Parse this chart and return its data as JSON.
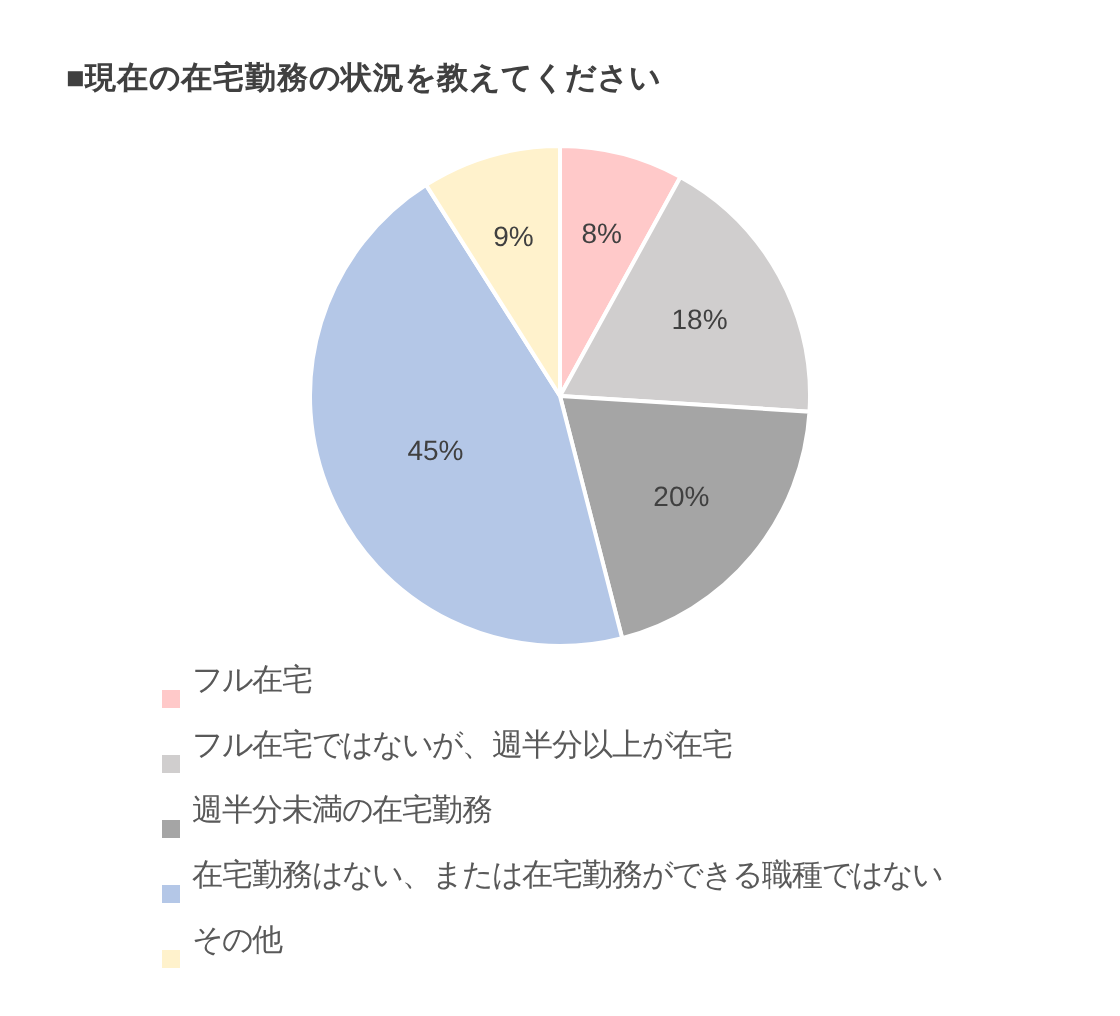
{
  "chart_data": {
    "type": "pie",
    "title": "■現在の在宅勤務の状況を教えてください",
    "categories": [
      "フル在宅",
      "フル在宅ではないが、週半分以上が在宅",
      "週半分未満の在宅勤務",
      "在宅勤務はない、または在宅勤務ができる職種ではない",
      "その他"
    ],
    "values": [
      8,
      18,
      20,
      45,
      9
    ],
    "colors": [
      "#ffc9c9",
      "#d0cece",
      "#a5a5a5",
      "#b4c7e7",
      "#fff2cc"
    ],
    "value_labels": [
      "8%",
      "18%",
      "20%",
      "45%",
      "9%"
    ],
    "legend": "bottom left"
  }
}
